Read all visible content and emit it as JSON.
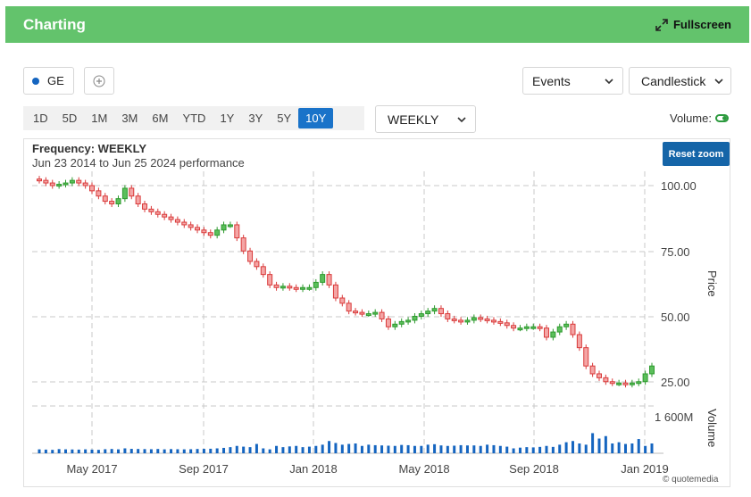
{
  "header": {
    "title": "Charting",
    "fullscreen_label": "Fullscreen"
  },
  "toolbar": {
    "symbol": "GE",
    "events_label": "Events",
    "chart_type_label": "Candlestick",
    "frequency_label": "WEEKLY",
    "volume_label": "Volume:",
    "periods": [
      "1D",
      "5D",
      "1M",
      "3M",
      "6M",
      "YTD",
      "1Y",
      "3Y",
      "5Y",
      "10Y"
    ],
    "active_period": "10Y"
  },
  "chart": {
    "frequency_text": "Frequency: WEEKLY",
    "performance_text": "Jun 23 2014 to Jun 25 2024 performance",
    "reset_zoom_label": "Reset zoom",
    "credit": "© quotemedia",
    "colors": {
      "up": "#2e9a2e",
      "down": "#d93a3a",
      "volume": "#1565c0"
    }
  },
  "chart_data": {
    "type": "candlestick",
    "price_axis_title": "Price",
    "volume_axis_title": "Volume",
    "price_ticks": [
      100,
      75,
      50,
      25
    ],
    "price_tick_labels": [
      "100.00",
      "75.00",
      "50.00",
      "25.00"
    ],
    "volume_tick_label": "1 600M",
    "x_tick_labels": [
      "May 2017",
      "Sep 2017",
      "Jan 2018",
      "May 2018",
      "Sep 2018",
      "Jan 2019"
    ],
    "close": [
      102,
      101,
      100,
      100.5,
      101,
      102,
      101,
      100,
      98,
      96,
      94,
      93,
      95,
      99,
      96,
      93,
      91,
      90,
      89,
      88,
      87,
      86,
      85,
      84,
      83,
      82,
      81,
      83,
      85,
      85,
      80,
      75,
      71,
      69,
      66,
      62,
      61,
      61.5,
      61,
      60.5,
      61,
      61,
      63,
      66,
      62,
      57,
      55,
      52,
      51.5,
      51,
      51,
      51.5,
      49,
      46,
      47,
      48,
      48.5,
      50,
      51,
      52,
      53,
      51,
      49,
      48.5,
      48,
      48.5,
      49.5,
      49,
      48.5,
      48,
      47.5,
      46.5,
      45.5,
      45.5,
      46,
      46,
      45.5,
      42,
      44,
      46,
      47,
      43,
      38,
      31,
      28,
      26.5,
      25,
      24.5,
      24.5,
      24,
      24.5,
      25,
      28,
      31
    ],
    "volume_millions": [
      160,
      150,
      140,
      170,
      160,
      155,
      150,
      160,
      150,
      140,
      165,
      175,
      160,
      200,
      180,
      175,
      170,
      165,
      175,
      160,
      170,
      165,
      160,
      165,
      175,
      180,
      185,
      200,
      220,
      250,
      300,
      270,
      250,
      380,
      200,
      160,
      300,
      250,
      280,
      300,
      250,
      270,
      300,
      350,
      500,
      420,
      350,
      380,
      400,
      300,
      350,
      330,
      320,
      310,
      300,
      340,
      330,
      300,
      300,
      350,
      370,
      320,
      300,
      310,
      330,
      320,
      320,
      300,
      350,
      330,
      300,
      270,
      200,
      230,
      250,
      240,
      260,
      300,
      260,
      350,
      450,
      500,
      400,
      350,
      820,
      600,
      700,
      400,
      450,
      380,
      400,
      580,
      300,
      400
    ]
  }
}
